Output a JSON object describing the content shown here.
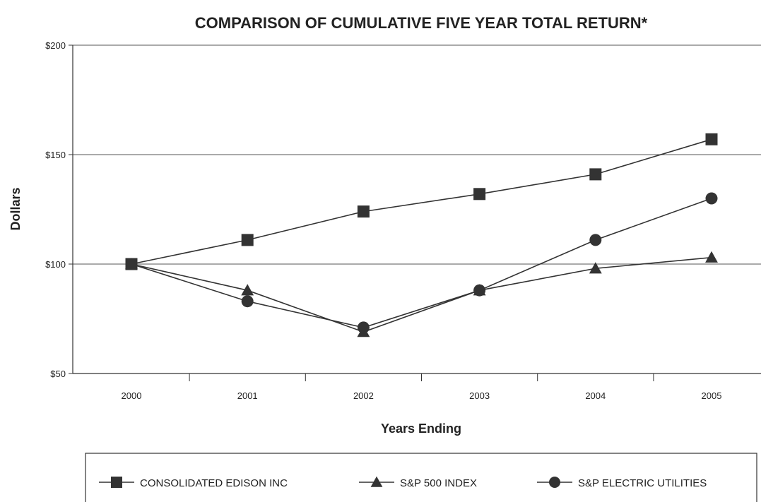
{
  "chart_data": {
    "type": "line",
    "title": "COMPARISON OF CUMULATIVE FIVE YEAR TOTAL RETURN*",
    "xlabel": "Years Ending",
    "ylabel": "Dollars",
    "x": [
      "2000",
      "2001",
      "2002",
      "2003",
      "2004",
      "2005"
    ],
    "ylim": [
      50,
      200
    ],
    "yticks": [
      50,
      100,
      150,
      200
    ],
    "ytick_labels": [
      "$50",
      "$100",
      "$150",
      "$200"
    ],
    "grid": "horizontal",
    "legend_position": "bottom",
    "series": [
      {
        "name": "CONSOLIDATED EDISON INC",
        "marker": "square",
        "values": [
          100,
          111,
          124,
          132,
          141,
          157
        ]
      },
      {
        "name": "S&P 500 INDEX",
        "marker": "triangle",
        "values": [
          100,
          88,
          69,
          88,
          98,
          103
        ]
      },
      {
        "name": "S&P ELECTRIC UTILITIES",
        "marker": "circle",
        "values": [
          100,
          83,
          71,
          88,
          111,
          130
        ]
      }
    ],
    "line_color": "#333333"
  }
}
